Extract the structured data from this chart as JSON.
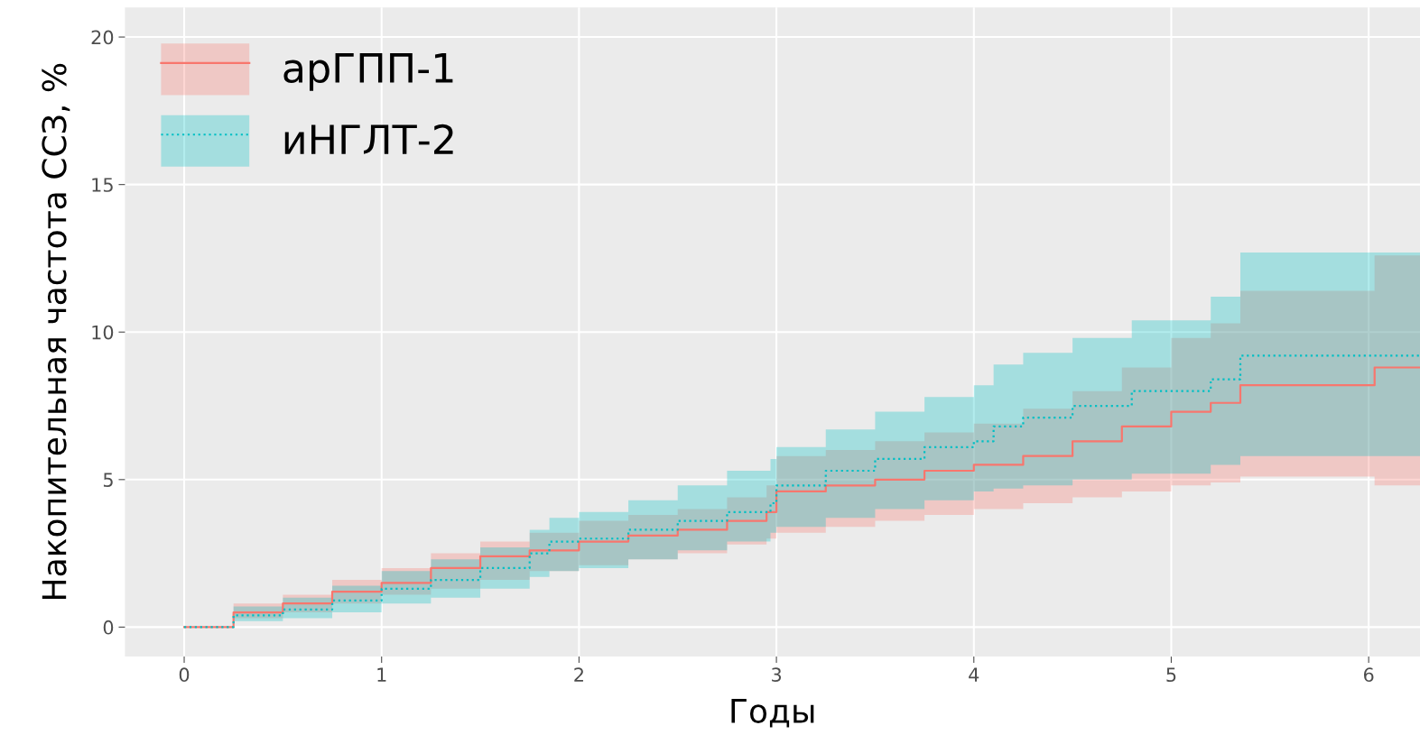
{
  "chart_data": {
    "type": "step",
    "xlabel": "Годы",
    "ylabel": "Накопительная частота ССЗ, %",
    "xlim": [
      -0.3,
      6.26
    ],
    "ylim": [
      -1,
      21
    ],
    "xticks": [
      0,
      1,
      2,
      3,
      4,
      5,
      6
    ],
    "yticks": [
      0,
      5,
      10,
      15,
      20
    ],
    "grid": true,
    "legend": "top left",
    "series": [
      {
        "name": "арГПП-1",
        "color": "#f8766d",
        "line_style": "solid",
        "x": [
          0,
          0.25,
          0.5,
          0.75,
          1,
          1.25,
          1.5,
          1.75,
          2,
          2.25,
          2.5,
          2.75,
          2.95,
          3.0,
          3.25,
          3.5,
          3.75,
          4,
          4.25,
          4.5,
          4.75,
          5,
          5.2,
          5.35,
          6.03,
          6.26
        ],
        "values": [
          0,
          0.5,
          0.8,
          1.2,
          1.5,
          2.0,
          2.4,
          2.6,
          2.9,
          3.1,
          3.3,
          3.6,
          3.9,
          4.6,
          4.8,
          5.0,
          5.3,
          5.5,
          5.8,
          6.3,
          6.8,
          7.3,
          7.6,
          8.2,
          8.8,
          8.8
        ],
        "lower": [
          0,
          0.3,
          0.5,
          0.8,
          1.1,
          1.3,
          1.6,
          1.9,
          2.1,
          2.3,
          2.5,
          2.8,
          3.0,
          3.2,
          3.4,
          3.6,
          3.8,
          4.0,
          4.2,
          4.4,
          4.6,
          4.8,
          4.9,
          5.1,
          4.8,
          4.8
        ],
        "upper": [
          0,
          0.8,
          1.1,
          1.6,
          2.0,
          2.5,
          2.9,
          3.2,
          3.6,
          3.8,
          4.0,
          4.4,
          4.8,
          5.8,
          6.0,
          6.3,
          6.6,
          6.9,
          7.4,
          8.0,
          8.8,
          9.8,
          10.3,
          11.4,
          12.6,
          12.6
        ]
      },
      {
        "name": "иНГЛТ-2",
        "color": "#00bfc4",
        "line_style": "dotted",
        "x": [
          0,
          0.25,
          0.5,
          0.75,
          1,
          1.25,
          1.5,
          1.75,
          1.85,
          2,
          2.25,
          2.5,
          2.75,
          2.97,
          3.0,
          3.25,
          3.5,
          3.75,
          4.0,
          4.1,
          4.25,
          4.5,
          4.8,
          5.2,
          5.35,
          6.26
        ],
        "values": [
          0,
          0.4,
          0.6,
          0.9,
          1.3,
          1.6,
          2.0,
          2.5,
          2.9,
          3.0,
          3.3,
          3.6,
          3.9,
          4.2,
          4.8,
          5.3,
          5.7,
          6.1,
          6.3,
          6.8,
          7.1,
          7.5,
          8.0,
          8.4,
          9.2,
          9.2
        ],
        "lower": [
          0,
          0.2,
          0.3,
          0.5,
          0.8,
          1.0,
          1.3,
          1.7,
          1.9,
          2.0,
          2.3,
          2.6,
          2.9,
          3.2,
          3.4,
          3.7,
          4.0,
          4.3,
          4.6,
          4.7,
          4.8,
          5.0,
          5.2,
          5.5,
          5.8,
          5.8
        ],
        "upper": [
          0,
          0.7,
          1.0,
          1.4,
          1.9,
          2.3,
          2.7,
          3.3,
          3.7,
          3.9,
          4.3,
          4.8,
          5.3,
          5.7,
          6.1,
          6.7,
          7.3,
          7.8,
          8.2,
          8.9,
          9.3,
          9.8,
          10.4,
          11.2,
          12.7,
          12.7
        ]
      }
    ]
  }
}
